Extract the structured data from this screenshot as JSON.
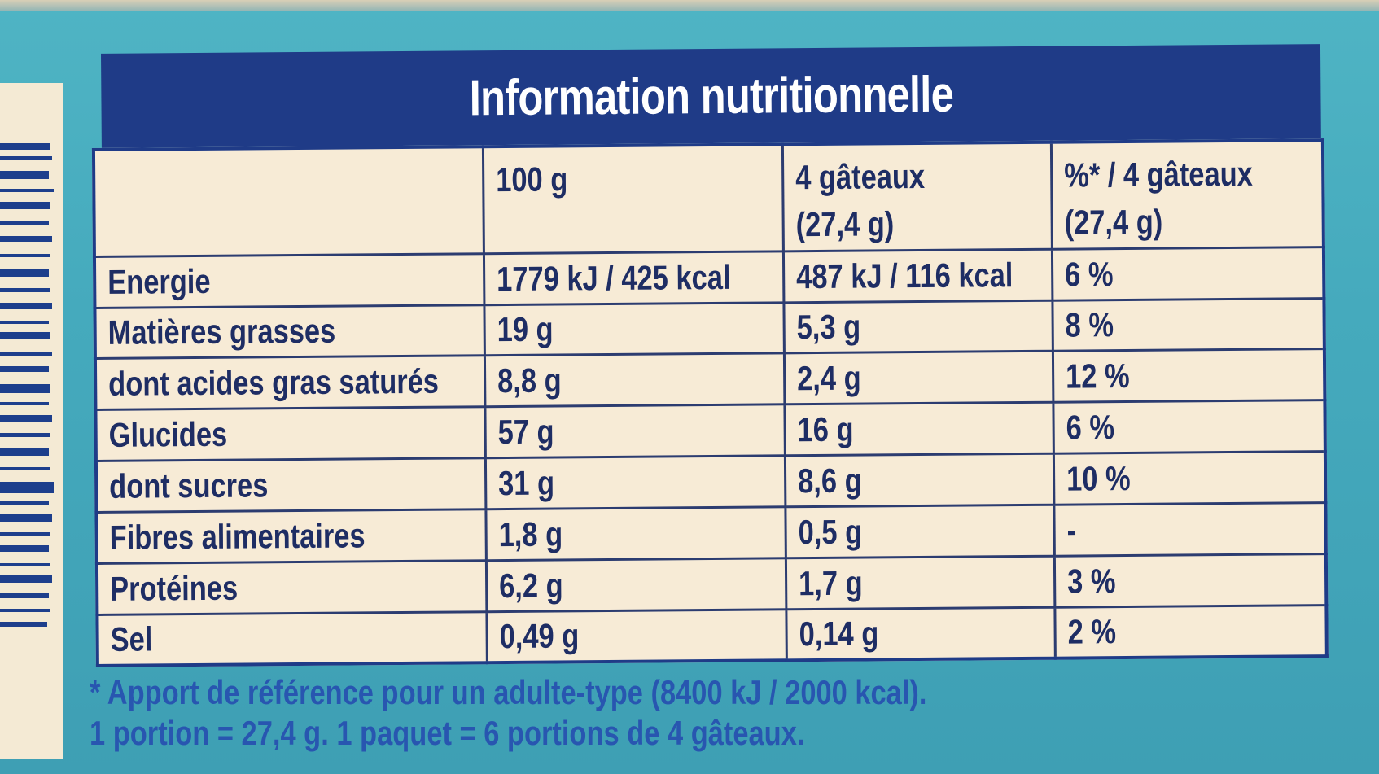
{
  "title": "Information nutritionnelle",
  "columns": [
    "",
    "100 g",
    "4 gâteaux",
    "%* / 4 gâteaux"
  ],
  "columns_sub": [
    "",
    "",
    "(27,4 g)",
    "(27,4 g)"
  ],
  "rows": [
    {
      "label": "Energie",
      "per100": "1779 kJ / 425 kcal",
      "perPortion": "487 kJ / 116 kcal",
      "ri": "6 %"
    },
    {
      "label": "Matières grasses",
      "per100": "19 g",
      "perPortion": "5,3 g",
      "ri": "8 %"
    },
    {
      "label": "dont acides gras saturés",
      "per100": "8,8 g",
      "perPortion": "2,4 g",
      "ri": "12 %"
    },
    {
      "label": "Glucides",
      "per100": "57 g",
      "perPortion": "16 g",
      "ri": "6 %"
    },
    {
      "label": "dont sucres",
      "per100": "31 g",
      "perPortion": "8,6 g",
      "ri": "10 %"
    },
    {
      "label": "Fibres alimentaires",
      "per100": "1,8 g",
      "perPortion": "0,5 g",
      "ri": "-"
    },
    {
      "label": "Protéines",
      "per100": "6,2 g",
      "perPortion": "1,7 g",
      "ri": "3 %"
    },
    {
      "label": "Sel",
      "per100": "0,49 g",
      "perPortion": "0,14 g",
      "ri": "2 %"
    }
  ],
  "footnote": {
    "line1": "* Apport de référence pour un adulte-type (8400 kJ / 2000 kcal).",
    "line2": "1 portion = 27,4 g. 1 paquet = 6 portions de 4 gâteaux."
  },
  "colors": {
    "header_bg": "#1f3b87",
    "table_bg": "#f7ebd6",
    "text": "#1e2d64",
    "package_bg": "#45aabd",
    "footnote_text": "#2856b0"
  }
}
